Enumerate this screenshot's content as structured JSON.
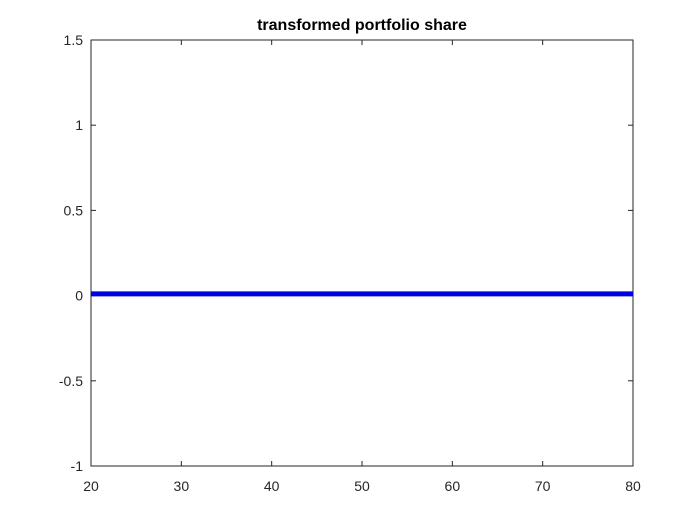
{
  "chart_data": {
    "type": "line",
    "title": "transformed portfolio share",
    "xlabel": "",
    "ylabel": "",
    "xlim": [
      20,
      80
    ],
    "ylim": [
      -1,
      1.5
    ],
    "xticks": [
      20,
      30,
      40,
      50,
      60,
      70,
      80
    ],
    "yticks": [
      -1,
      -0.5,
      0,
      0.5,
      1,
      1.5
    ],
    "xtick_labels": [
      "20",
      "30",
      "40",
      "50",
      "60",
      "70",
      "80"
    ],
    "ytick_labels": [
      "-1",
      "-0.5",
      "0",
      "0.5",
      "1",
      "1.5"
    ],
    "grid": false,
    "series": [
      {
        "color": "#0000e6",
        "x": [
          20,
          80
        ],
        "y": [
          0.01,
          0.01
        ]
      }
    ]
  }
}
